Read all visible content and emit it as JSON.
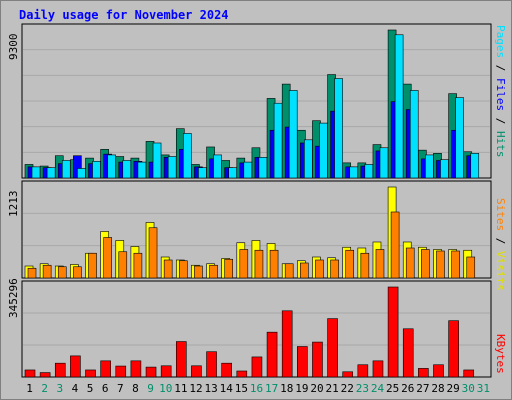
{
  "chart_data": {
    "type": "bar",
    "title": "Daily usage for November 2024",
    "categories": [
      "1",
      "2",
      "3",
      "4",
      "5",
      "6",
      "7",
      "8",
      "9",
      "10",
      "11",
      "12",
      "13",
      "14",
      "15",
      "16",
      "17",
      "18",
      "19",
      "20",
      "21",
      "22",
      "23",
      "24",
      "25",
      "26",
      "27",
      "28",
      "29",
      "30",
      "31"
    ],
    "weekend_days": [
      "2",
      "3",
      "9",
      "10",
      "16",
      "17",
      "23",
      "24",
      "30",
      "31"
    ],
    "panels": [
      {
        "id": "hits",
        "ymax_label": "9300",
        "ymax": 9300,
        "right_labels": [
          {
            "text": "Pages",
            "color": "#00e0ff"
          },
          {
            "text": " / ",
            "color": "#000000"
          },
          {
            "text": "Files",
            "color": "#0000ff"
          },
          {
            "text": " / ",
            "color": "#000000"
          },
          {
            "text": "Hits",
            "color": "#008f6b"
          }
        ],
        "series": [
          {
            "name": "Hits",
            "color": "#008f6b",
            "values": [
              850,
              750,
              1400,
              1150,
              1250,
              1800,
              1350,
              1250,
              2300,
              1450,
              3100,
              850,
              1950,
              1100,
              1250,
              1900,
              5000,
              5900,
              3000,
              3600,
              6500,
              950,
              950,
              2100,
              9300,
              5900,
              1750,
              1550,
              5300,
              1650,
              0
            ]
          },
          {
            "name": "Files",
            "color": "#0000ff",
            "values": [
              700,
              650,
              900,
              1400,
              900,
              1500,
              1000,
              1050,
              1000,
              1300,
              1800,
              700,
              1200,
              650,
              950,
              1300,
              3000,
              3200,
              2200,
              2000,
              4200,
              700,
              750,
              1700,
              4800,
              4300,
              1200,
              1100,
              3000,
              1400,
              0
            ]
          },
          {
            "name": "Pages",
            "color": "#00e0ff",
            "values": [
              700,
              650,
              1100,
              600,
              1050,
              1450,
              1100,
              1000,
              2200,
              1350,
              2800,
              650,
              1450,
              650,
              1000,
              1300,
              4700,
              5500,
              2400,
              3450,
              6250,
              700,
              850,
              1900,
              9000,
              5500,
              1450,
              1150,
              5050,
              1550,
              0
            ]
          }
        ]
      },
      {
        "id": "visits",
        "ymax_label": "1213",
        "ymax": 1213,
        "right_labels": [
          {
            "text": "Sites",
            "color": "#ff8000"
          },
          {
            "text": " / ",
            "color": "#000000"
          },
          {
            "text": "Visits",
            "color": "#ffff00"
          }
        ],
        "series": [
          {
            "name": "Visits",
            "color": "#ffff00",
            "values": [
              160,
              190,
              160,
              180,
              330,
              620,
              500,
              420,
              740,
              280,
              240,
              170,
              190,
              260,
              470,
              500,
              460,
              190,
              230,
              280,
              270,
              410,
              400,
              480,
              1213,
              480,
              410,
              380,
              380,
              370,
              0
            ]
          },
          {
            "name": "Sites",
            "color": "#ff8000",
            "values": [
              130,
              170,
              150,
              150,
              330,
              540,
              350,
              330,
              670,
              240,
              230,
              160,
              170,
              250,
              380,
              370,
              370,
              190,
              200,
              240,
              240,
              370,
              330,
              380,
              880,
              400,
              380,
              360,
              360,
              280,
              0
            ]
          }
        ]
      },
      {
        "id": "kbytes",
        "ymax_label": "345296",
        "ymax": 345296,
        "right_labels": [
          {
            "text": "KBytes",
            "color": "#ff0000"
          }
        ],
        "series": [
          {
            "name": "KBytes",
            "color": "#ff0000",
            "values": [
              27000,
              17000,
              53000,
              81000,
              27000,
              62000,
              42000,
              62000,
              38000,
              43000,
              136000,
              43000,
              97000,
              53000,
              23000,
              77000,
              172000,
              254000,
              117000,
              134000,
              224000,
              20000,
              47000,
              62000,
              345296,
              185000,
              33000,
              47000,
              216000,
              27000,
              0
            ]
          }
        ]
      }
    ]
  }
}
